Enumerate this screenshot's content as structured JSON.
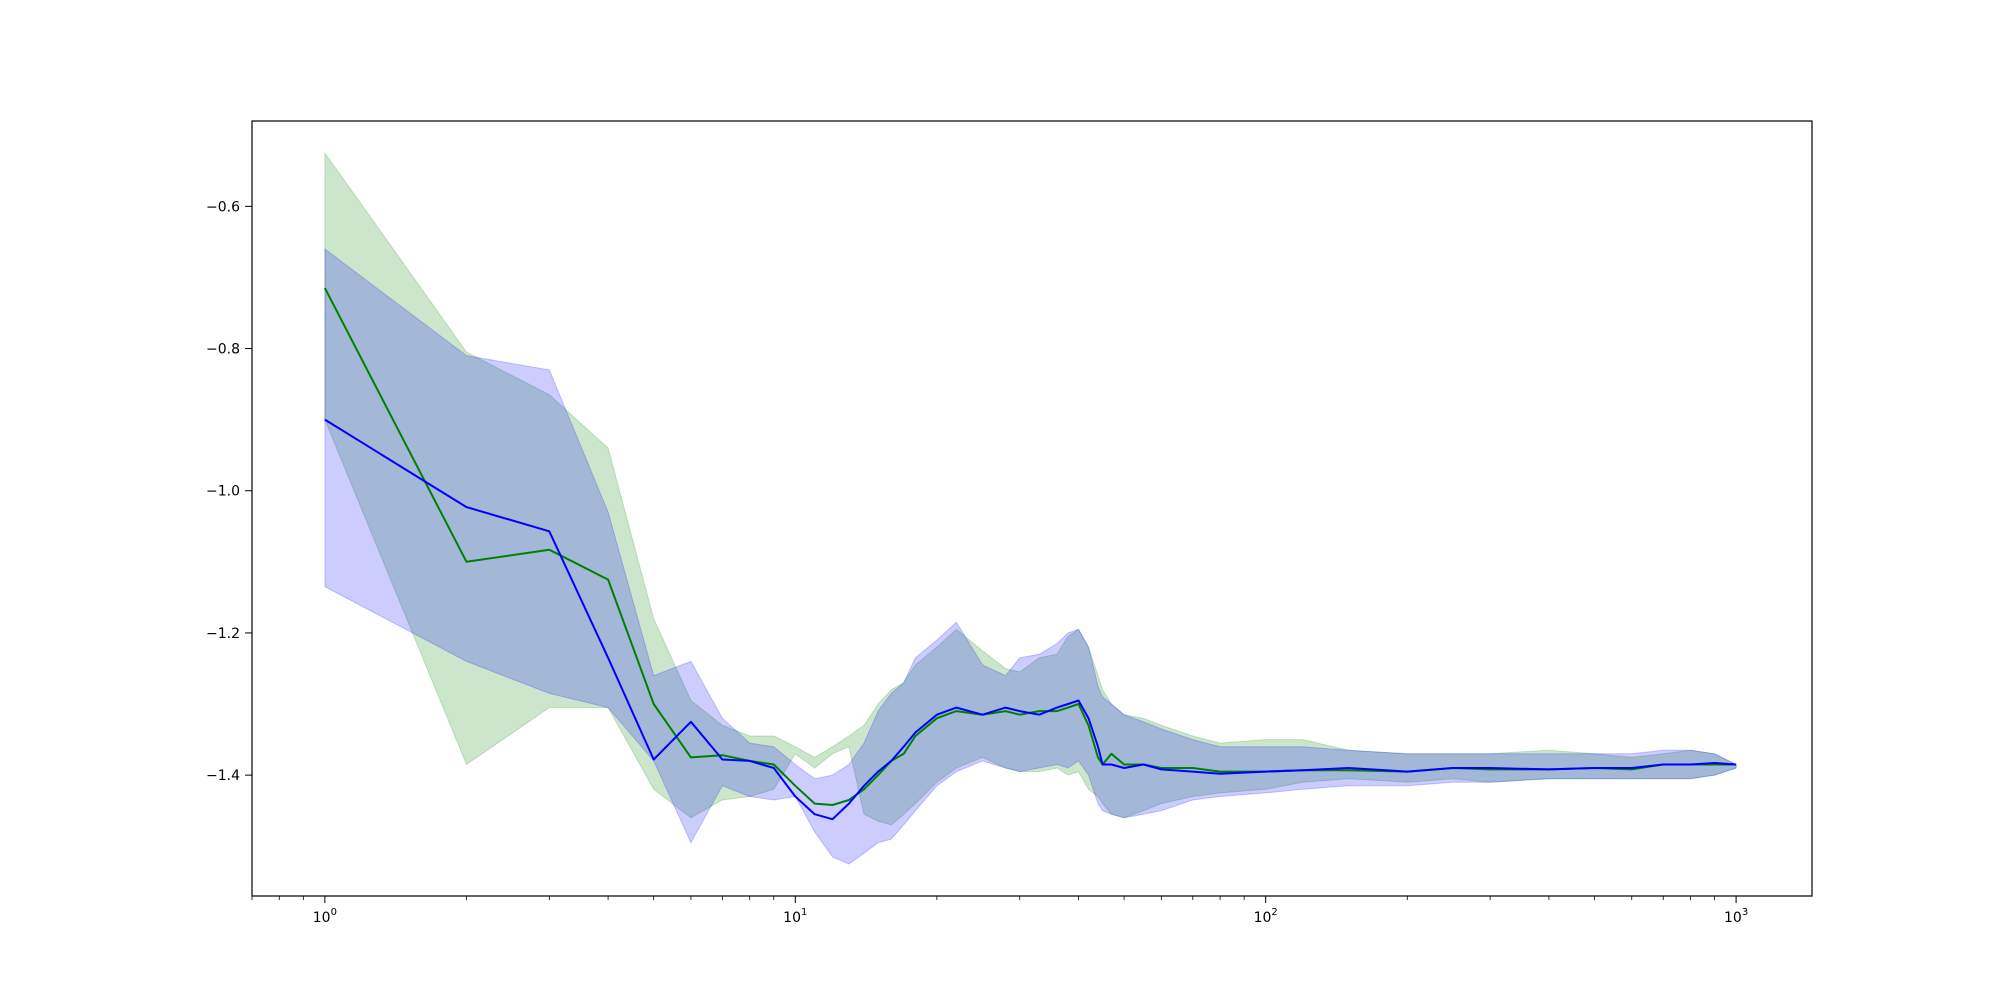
{
  "chart_data": {
    "type": "line",
    "title": "",
    "xlabel": "",
    "ylabel": "",
    "x_scale": "log",
    "xlim": [
      0.7,
      1450
    ],
    "ylim": [
      -1.57,
      -0.48
    ],
    "grid": false,
    "legend": "none",
    "x_ticks": [
      {
        "base": "10",
        "exp": "0",
        "value": 1
      },
      {
        "base": "10",
        "exp": "1",
        "value": 10
      },
      {
        "base": "10",
        "exp": "2",
        "value": 100
      },
      {
        "base": "10",
        "exp": "3",
        "value": 1000
      }
    ],
    "y_ticks": [
      {
        "label": "−0.6",
        "value": -0.6
      },
      {
        "label": "−0.8",
        "value": -0.8
      },
      {
        "label": "−1.0",
        "value": -1.0
      },
      {
        "label": "−1.2",
        "value": -1.2
      },
      {
        "label": "−1.4",
        "value": -1.4
      }
    ],
    "series": [
      {
        "color": "#008000",
        "band_color": "#008000",
        "band_opacity": 0.2,
        "x": [
          1,
          2,
          3,
          4,
          5,
          6,
          7,
          8,
          9,
          10,
          11,
          12,
          13,
          14,
          15,
          16,
          17,
          18,
          20,
          22,
          25,
          28,
          30,
          33,
          36,
          38,
          40,
          42,
          44,
          45,
          47,
          50,
          55,
          60,
          70,
          80,
          100,
          120,
          150,
          200,
          250,
          300,
          400,
          500,
          600,
          700,
          800,
          900,
          1000
        ],
        "y": [
          -0.715,
          -1.1,
          -1.083,
          -1.125,
          -1.3,
          -1.375,
          -1.372,
          -1.38,
          -1.385,
          -1.415,
          -1.44,
          -1.442,
          -1.435,
          -1.42,
          -1.4,
          -1.38,
          -1.37,
          -1.345,
          -1.32,
          -1.31,
          -1.315,
          -1.31,
          -1.315,
          -1.31,
          -1.31,
          -1.305,
          -1.3,
          -1.33,
          -1.375,
          -1.385,
          -1.37,
          -1.385,
          -1.385,
          -1.39,
          -1.39,
          -1.395,
          -1.395,
          -1.393,
          -1.393,
          -1.395,
          -1.39,
          -1.392,
          -1.392,
          -1.39,
          -1.392,
          -1.385,
          -1.385,
          -1.385,
          -1.385
        ],
        "lower": [
          -0.9,
          -1.385,
          -1.305,
          -1.305,
          -1.42,
          -1.46,
          -1.435,
          -1.43,
          -1.42,
          -1.37,
          -1.39,
          -1.37,
          -1.36,
          -1.455,
          -1.465,
          -1.47,
          -1.455,
          -1.44,
          -1.41,
          -1.39,
          -1.375,
          -1.39,
          -1.395,
          -1.395,
          -1.39,
          -1.4,
          -1.395,
          -1.42,
          -1.43,
          -1.44,
          -1.455,
          -1.46,
          -1.45,
          -1.44,
          -1.43,
          -1.425,
          -1.42,
          -1.41,
          -1.405,
          -1.41,
          -1.405,
          -1.41,
          -1.405,
          -1.405,
          -1.405,
          -1.405,
          -1.405,
          -1.4,
          -1.39
        ],
        "upper": [
          -0.525,
          -0.805,
          -0.865,
          -0.94,
          -1.18,
          -1.295,
          -1.33,
          -1.345,
          -1.345,
          -1.36,
          -1.375,
          -1.36,
          -1.345,
          -1.33,
          -1.3,
          -1.28,
          -1.27,
          -1.245,
          -1.22,
          -1.195,
          -1.225,
          -1.25,
          -1.255,
          -1.235,
          -1.23,
          -1.205,
          -1.195,
          -1.22,
          -1.26,
          -1.28,
          -1.3,
          -1.315,
          -1.32,
          -1.33,
          -1.345,
          -1.355,
          -1.35,
          -1.35,
          -1.365,
          -1.37,
          -1.37,
          -1.37,
          -1.365,
          -1.37,
          -1.375,
          -1.37,
          -1.365,
          -1.37,
          -1.385
        ]
      },
      {
        "color": "#0000ff",
        "band_color": "#0000ff",
        "band_opacity": 0.2,
        "x": [
          1,
          2,
          3,
          4,
          5,
          6,
          7,
          8,
          9,
          10,
          11,
          12,
          13,
          14,
          15,
          16,
          17,
          18,
          20,
          22,
          25,
          28,
          30,
          33,
          36,
          38,
          40,
          42,
          44,
          45,
          47,
          50,
          55,
          60,
          70,
          80,
          100,
          120,
          150,
          200,
          250,
          300,
          400,
          500,
          600,
          700,
          800,
          900,
          1000
        ],
        "y": [
          -0.9,
          -1.023,
          -1.057,
          -1.235,
          -1.378,
          -1.325,
          -1.378,
          -1.38,
          -1.39,
          -1.43,
          -1.455,
          -1.462,
          -1.44,
          -1.415,
          -1.395,
          -1.38,
          -1.36,
          -1.34,
          -1.315,
          -1.305,
          -1.315,
          -1.305,
          -1.31,
          -1.315,
          -1.305,
          -1.3,
          -1.295,
          -1.32,
          -1.36,
          -1.385,
          -1.385,
          -1.39,
          -1.385,
          -1.392,
          -1.395,
          -1.398,
          -1.395,
          -1.393,
          -1.39,
          -1.395,
          -1.39,
          -1.39,
          -1.392,
          -1.39,
          -1.39,
          -1.385,
          -1.385,
          -1.383,
          -1.385
        ],
        "lower": [
          -1.135,
          -1.24,
          -1.285,
          -1.305,
          -1.38,
          -1.495,
          -1.415,
          -1.43,
          -1.435,
          -1.43,
          -1.48,
          -1.515,
          -1.525,
          -1.51,
          -1.495,
          -1.49,
          -1.47,
          -1.45,
          -1.415,
          -1.395,
          -1.38,
          -1.39,
          -1.395,
          -1.39,
          -1.385,
          -1.39,
          -1.38,
          -1.4,
          -1.44,
          -1.45,
          -1.455,
          -1.46,
          -1.455,
          -1.45,
          -1.435,
          -1.43,
          -1.425,
          -1.42,
          -1.415,
          -1.415,
          -1.41,
          -1.41,
          -1.405,
          -1.405,
          -1.405,
          -1.405,
          -1.405,
          -1.4,
          -1.39
        ],
        "upper": [
          -0.66,
          -0.81,
          -0.83,
          -1.03,
          -1.26,
          -1.24,
          -1.32,
          -1.355,
          -1.36,
          -1.385,
          -1.405,
          -1.4,
          -1.385,
          -1.355,
          -1.31,
          -1.285,
          -1.27,
          -1.235,
          -1.21,
          -1.185,
          -1.245,
          -1.26,
          -1.235,
          -1.23,
          -1.215,
          -1.2,
          -1.195,
          -1.22,
          -1.275,
          -1.29,
          -1.3,
          -1.315,
          -1.325,
          -1.335,
          -1.35,
          -1.36,
          -1.36,
          -1.36,
          -1.365,
          -1.37,
          -1.37,
          -1.37,
          -1.37,
          -1.37,
          -1.37,
          -1.365,
          -1.365,
          -1.37,
          -1.385
        ]
      }
    ]
  }
}
